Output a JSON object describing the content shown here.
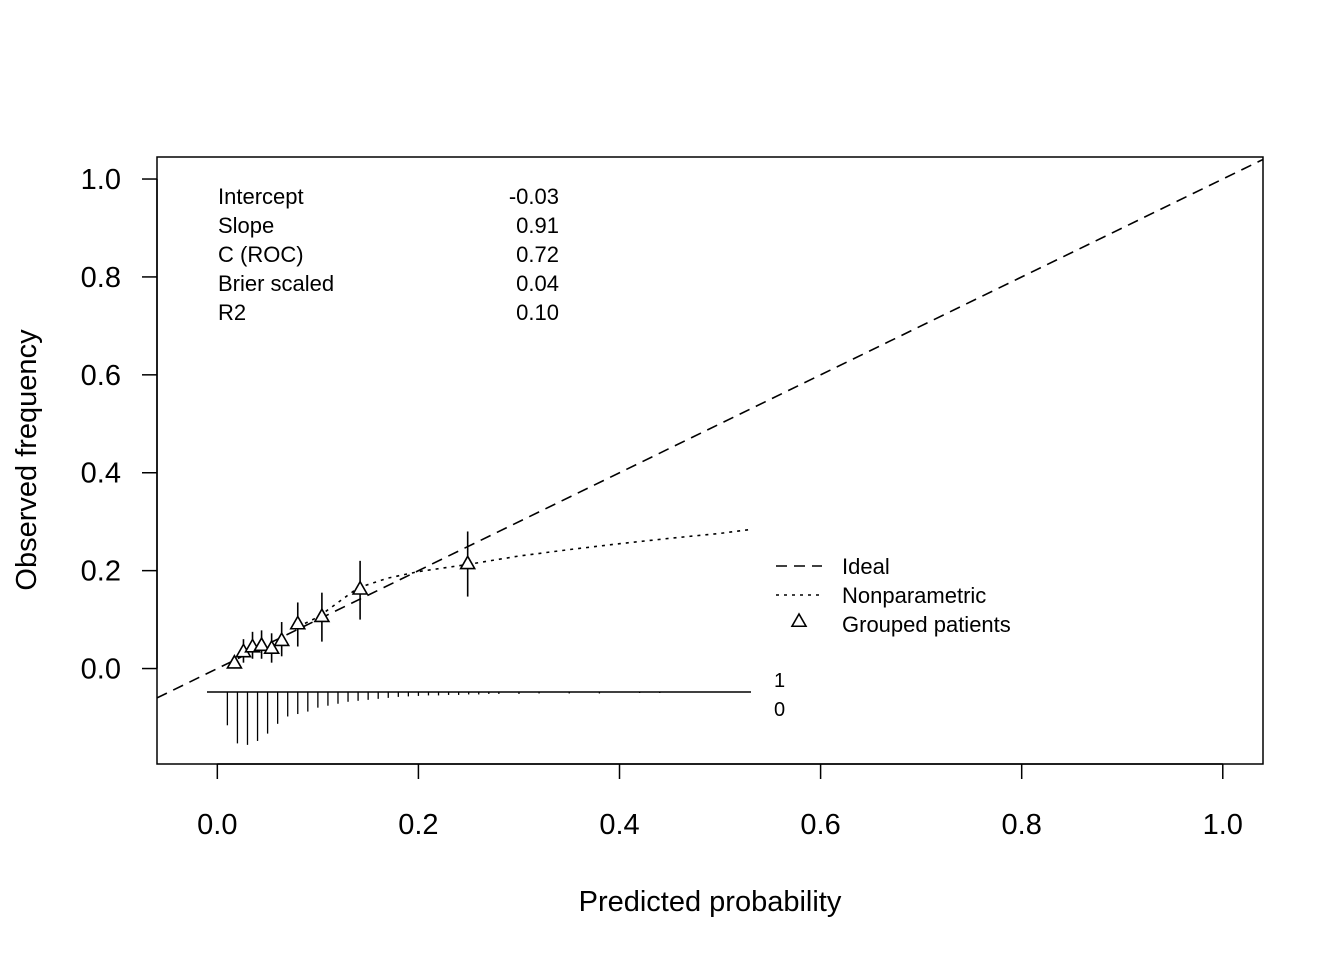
{
  "chart_data": {
    "type": "scatter",
    "title": "",
    "xlabel": "Predicted probability",
    "ylabel": "Observed frequency",
    "xlim": [
      -0.06,
      1.04
    ],
    "ylim": [
      -0.195,
      1.045
    ],
    "x_ticks": [
      "0.0",
      "0.2",
      "0.4",
      "0.6",
      "0.8",
      "1.0"
    ],
    "x_tick_values": [
      0,
      0.2,
      0.4,
      0.6,
      0.8,
      1.0
    ],
    "y_ticks": [
      "0.0",
      "0.2",
      "0.4",
      "0.6",
      "0.8",
      "1.0"
    ],
    "y_tick_values": [
      0,
      0.2,
      0.4,
      0.6,
      0.8,
      1.0
    ],
    "grid": false,
    "stats": [
      {
        "label": "Intercept",
        "value": "-0.03"
      },
      {
        "label": "Slope",
        "value": "0.91"
      },
      {
        "label": "C (ROC)",
        "value": "0.72"
      },
      {
        "label": "Brier scaled",
        "value": "0.04"
      },
      {
        "label": "R2",
        "value": "0.10"
      }
    ],
    "legend": {
      "placement": "right",
      "items": [
        {
          "label": "Ideal",
          "symbol": "dashed-line"
        },
        {
          "label": "Nonparametric",
          "symbol": "dotted-line"
        },
        {
          "label": "Grouped patients",
          "symbol": "triangle"
        }
      ]
    },
    "series": [
      {
        "name": "Ideal",
        "style": "dashed",
        "x": [
          -0.06,
          1.04
        ],
        "y": [
          -0.06,
          1.04
        ]
      },
      {
        "name": "Nonparametric",
        "style": "dotted",
        "x": [
          0.08,
          0.1,
          0.12,
          0.14,
          0.17,
          0.2,
          0.25,
          0.3,
          0.35,
          0.4,
          0.45,
          0.5,
          0.53
        ],
        "y": [
          0.085,
          0.105,
          0.135,
          0.165,
          0.185,
          0.198,
          0.213,
          0.23,
          0.243,
          0.255,
          0.266,
          0.276,
          0.284
        ]
      },
      {
        "name": "Grouped patients",
        "style": "triangle",
        "points": [
          {
            "x": 0.017,
            "y": 0.012,
            "lo": 0.0,
            "hi": 0.025
          },
          {
            "x": 0.026,
            "y": 0.035,
            "lo": 0.012,
            "hi": 0.06
          },
          {
            "x": 0.035,
            "y": 0.045,
            "lo": 0.02,
            "hi": 0.075
          },
          {
            "x": 0.044,
            "y": 0.048,
            "lo": 0.02,
            "hi": 0.078
          },
          {
            "x": 0.054,
            "y": 0.042,
            "lo": 0.012,
            "hi": 0.072
          },
          {
            "x": 0.064,
            "y": 0.058,
            "lo": 0.025,
            "hi": 0.095
          },
          {
            "x": 0.08,
            "y": 0.092,
            "lo": 0.045,
            "hi": 0.135
          },
          {
            "x": 0.104,
            "y": 0.107,
            "lo": 0.055,
            "hi": 0.155
          },
          {
            "x": 0.142,
            "y": 0.163,
            "lo": 0.1,
            "hi": 0.22
          },
          {
            "x": 0.249,
            "y": 0.215,
            "lo": 0.147,
            "hi": 0.28
          }
        ]
      }
    ],
    "rug": {
      "labels": [
        "1",
        "0"
      ],
      "x": [
        0.01,
        0.02,
        0.03,
        0.04,
        0.05,
        0.06,
        0.07,
        0.08,
        0.09,
        0.1,
        0.11,
        0.12,
        0.13,
        0.14,
        0.15,
        0.16,
        0.17,
        0.18,
        0.19,
        0.2,
        0.21,
        0.22,
        0.23,
        0.24,
        0.25,
        0.26,
        0.27,
        0.28,
        0.3,
        0.32,
        0.35,
        0.38,
        0.42,
        0.44
      ],
      "events": [
        0,
        0,
        0,
        0,
        0,
        0,
        0,
        0,
        0,
        0,
        0,
        0,
        0,
        0,
        0,
        0,
        0,
        0,
        0,
        0,
        0,
        0,
        0,
        0,
        0,
        0,
        0,
        0,
        0,
        0,
        0,
        0,
        0,
        0
      ],
      "nonevents": [
        0.068,
        0.105,
        0.108,
        0.1,
        0.085,
        0.065,
        0.05,
        0.045,
        0.04,
        0.032,
        0.028,
        0.024,
        0.02,
        0.018,
        0.016,
        0.014,
        0.012,
        0.01,
        0.009,
        0.008,
        0.007,
        0.007,
        0.006,
        0.006,
        0.005,
        0.005,
        0.004,
        0.004,
        0.004,
        0.003,
        0.003,
        0.003,
        0.002,
        0.002
      ]
    }
  }
}
